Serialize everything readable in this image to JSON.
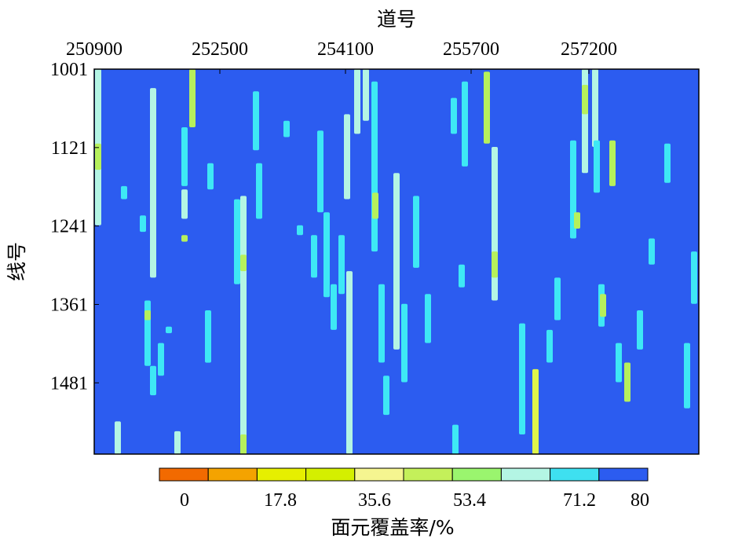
{
  "chart_data": {
    "type": "heatmap",
    "xlabel": "道号",
    "ylabel": "线号",
    "x_ticks": [
      "250900",
      "252500",
      "254100",
      "255700",
      "257200"
    ],
    "y_ticks": [
      "1001",
      "1121",
      "1241",
      "1361",
      "1481"
    ],
    "xlim": [
      250900,
      258600
    ],
    "ylim": [
      1001,
      1590
    ],
    "colorbar": {
      "label": "面元覆盖率/%",
      "tick_labels": [
        "0",
        "17.8",
        "35.6",
        "53.4",
        "71.2",
        "80"
      ],
      "tick_values": [
        0,
        17.8,
        35.6,
        53.4,
        71.2,
        80
      ],
      "range": [
        0,
        80
      ],
      "bin_colors": [
        "#f26a00",
        "#f4a300",
        "#e6ef00",
        "#d4ef00",
        "#f5f590",
        "#c4f05a",
        "#9af56e",
        "#b4f5e4",
        "#3ee0f0",
        "#2c5cf0"
      ]
    },
    "background_value": 80,
    "background_color": "#2c5cf0",
    "segment_colors": {
      "cyan": "#3ee8f5",
      "pale": "#b4f5e4",
      "lime": "#b6f05c",
      "yellow": "#dff54a"
    },
    "segments": [
      {
        "x": 250950,
        "y0": 1001,
        "y1": 1240,
        "c": "pale"
      },
      {
        "x": 250950,
        "y0": 1115,
        "y1": 1155,
        "c": "lime"
      },
      {
        "x": 251200,
        "y0": 1540,
        "y1": 1590,
        "c": "pale"
      },
      {
        "x": 251280,
        "y0": 1180,
        "y1": 1200,
        "c": "cyan"
      },
      {
        "x": 251520,
        "y0": 1225,
        "y1": 1250,
        "c": "cyan"
      },
      {
        "x": 251580,
        "y0": 1355,
        "y1": 1455,
        "c": "cyan"
      },
      {
        "x": 251580,
        "y0": 1370,
        "y1": 1385,
        "c": "lime"
      },
      {
        "x": 251650,
        "y0": 1030,
        "y1": 1320,
        "c": "pale"
      },
      {
        "x": 251650,
        "y0": 1455,
        "y1": 1500,
        "c": "cyan"
      },
      {
        "x": 251750,
        "y0": 1420,
        "y1": 1470,
        "c": "cyan"
      },
      {
        "x": 251850,
        "y0": 1395,
        "y1": 1405,
        "c": "cyan"
      },
      {
        "x": 251960,
        "y0": 1555,
        "y1": 1590,
        "c": "pale"
      },
      {
        "x": 252050,
        "y0": 1090,
        "y1": 1180,
        "c": "cyan"
      },
      {
        "x": 252050,
        "y0": 1185,
        "y1": 1230,
        "c": "pale"
      },
      {
        "x": 252050,
        "y0": 1255,
        "y1": 1265,
        "c": "lime"
      },
      {
        "x": 252150,
        "y0": 1001,
        "y1": 1090,
        "c": "lime"
      },
      {
        "x": 252350,
        "y0": 1370,
        "y1": 1450,
        "c": "cyan"
      },
      {
        "x": 252380,
        "y0": 1145,
        "y1": 1185,
        "c": "cyan"
      },
      {
        "x": 252720,
        "y0": 1200,
        "y1": 1330,
        "c": "cyan"
      },
      {
        "x": 252800,
        "y0": 1195,
        "y1": 1590,
        "c": "pale"
      },
      {
        "x": 252800,
        "y0": 1285,
        "y1": 1310,
        "c": "lime"
      },
      {
        "x": 252800,
        "y0": 1560,
        "y1": 1590,
        "c": "lime"
      },
      {
        "x": 252960,
        "y0": 1035,
        "y1": 1125,
        "c": "cyan"
      },
      {
        "x": 253000,
        "y0": 1145,
        "y1": 1230,
        "c": "cyan"
      },
      {
        "x": 253350,
        "y0": 1080,
        "y1": 1105,
        "c": "cyan"
      },
      {
        "x": 253520,
        "y0": 1240,
        "y1": 1255,
        "c": "cyan"
      },
      {
        "x": 253700,
        "y0": 1255,
        "y1": 1320,
        "c": "cyan"
      },
      {
        "x": 253780,
        "y0": 1095,
        "y1": 1220,
        "c": "cyan"
      },
      {
        "x": 253860,
        "y0": 1220,
        "y1": 1350,
        "c": "cyan"
      },
      {
        "x": 253950,
        "y0": 1330,
        "y1": 1400,
        "c": "cyan"
      },
      {
        "x": 254050,
        "y0": 1255,
        "y1": 1345,
        "c": "cyan"
      },
      {
        "x": 254120,
        "y0": 1070,
        "y1": 1200,
        "c": "pale"
      },
      {
        "x": 254150,
        "y0": 1310,
        "y1": 1590,
        "c": "pale"
      },
      {
        "x": 254250,
        "y0": 1001,
        "y1": 1100,
        "c": "pale"
      },
      {
        "x": 254360,
        "y0": 1001,
        "y1": 1080,
        "c": "pale"
      },
      {
        "x": 254470,
        "y0": 1020,
        "y1": 1280,
        "c": "cyan"
      },
      {
        "x": 254480,
        "y0": 1190,
        "y1": 1230,
        "c": "lime"
      },
      {
        "x": 254560,
        "y0": 1330,
        "y1": 1450,
        "c": "cyan"
      },
      {
        "x": 254620,
        "y0": 1470,
        "y1": 1530,
        "c": "cyan"
      },
      {
        "x": 254750,
        "y0": 1160,
        "y1": 1430,
        "c": "pale"
      },
      {
        "x": 254850,
        "y0": 1360,
        "y1": 1480,
        "c": "cyan"
      },
      {
        "x": 255000,
        "y0": 1195,
        "y1": 1305,
        "c": "cyan"
      },
      {
        "x": 255150,
        "y0": 1345,
        "y1": 1420,
        "c": "cyan"
      },
      {
        "x": 255480,
        "y0": 1045,
        "y1": 1100,
        "c": "cyan"
      },
      {
        "x": 255500,
        "y0": 1545,
        "y1": 1590,
        "c": "cyan"
      },
      {
        "x": 255580,
        "y0": 1300,
        "y1": 1335,
        "c": "cyan"
      },
      {
        "x": 255620,
        "y0": 1020,
        "y1": 1150,
        "c": "cyan"
      },
      {
        "x": 255900,
        "y0": 1005,
        "y1": 1115,
        "c": "lime"
      },
      {
        "x": 256000,
        "y0": 1120,
        "y1": 1355,
        "c": "pale"
      },
      {
        "x": 256000,
        "y0": 1280,
        "y1": 1320,
        "c": "lime"
      },
      {
        "x": 256350,
        "y0": 1390,
        "y1": 1560,
        "c": "cyan"
      },
      {
        "x": 256520,
        "y0": 1460,
        "y1": 1590,
        "c": "yellow"
      },
      {
        "x": 256700,
        "y0": 1400,
        "y1": 1450,
        "c": "cyan"
      },
      {
        "x": 256800,
        "y0": 1320,
        "y1": 1385,
        "c": "cyan"
      },
      {
        "x": 257000,
        "y0": 1110,
        "y1": 1260,
        "c": "cyan"
      },
      {
        "x": 257050,
        "y0": 1220,
        "y1": 1245,
        "c": "lime"
      },
      {
        "x": 257150,
        "y0": 1001,
        "y1": 1160,
        "c": "pale"
      },
      {
        "x": 257150,
        "y0": 1025,
        "y1": 1070,
        "c": "lime"
      },
      {
        "x": 257280,
        "y0": 1001,
        "y1": 1120,
        "c": "pale"
      },
      {
        "x": 257300,
        "y0": 1110,
        "y1": 1190,
        "c": "cyan"
      },
      {
        "x": 257360,
        "y0": 1330,
        "y1": 1395,
        "c": "cyan"
      },
      {
        "x": 257380,
        "y0": 1345,
        "y1": 1380,
        "c": "lime"
      },
      {
        "x": 257500,
        "y0": 1110,
        "y1": 1180,
        "c": "lime"
      },
      {
        "x": 257580,
        "y0": 1420,
        "y1": 1480,
        "c": "cyan"
      },
      {
        "x": 257690,
        "y0": 1450,
        "y1": 1510,
        "c": "lime"
      },
      {
        "x": 257850,
        "y0": 1370,
        "y1": 1430,
        "c": "cyan"
      },
      {
        "x": 258000,
        "y0": 1260,
        "y1": 1300,
        "c": "cyan"
      },
      {
        "x": 258200,
        "y0": 1115,
        "y1": 1175,
        "c": "cyan"
      },
      {
        "x": 258450,
        "y0": 1420,
        "y1": 1520,
        "c": "cyan"
      },
      {
        "x": 258540,
        "y0": 1280,
        "y1": 1360,
        "c": "cyan"
      }
    ]
  }
}
